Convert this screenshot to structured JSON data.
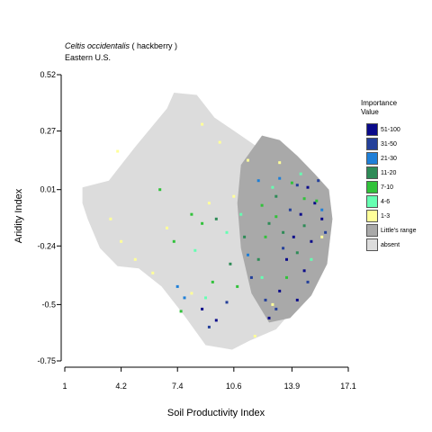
{
  "title": {
    "species": "Celtis occidentalis",
    "common": "( hackberry )",
    "region": "Eastern U.S."
  },
  "legend": {
    "title_line1": "Importance",
    "title_line2": "Value",
    "entries": [
      {
        "label": "51-100",
        "color": "#0a0a8a"
      },
      {
        "label": "31-50",
        "color": "#24409a"
      },
      {
        "label": "21-30",
        "color": "#1f7fd8"
      },
      {
        "label": "11-20",
        "color": "#2e8b57"
      },
      {
        "label": "7-10",
        "color": "#31c23a"
      },
      {
        "label": "4-6",
        "color": "#66ffb2"
      },
      {
        "label": "1-3",
        "color": "#ffff99"
      },
      {
        "label": "Little's range",
        "color": "#a9a9a9"
      },
      {
        "label": "absent",
        "color": "#dcdcdc"
      }
    ]
  },
  "chart_data": {
    "type": "heatmap",
    "title": "Celtis occidentalis ( hackberry )",
    "subtitle": "Eastern U.S.",
    "xlabel": "Soil Productivity Index",
    "ylabel": "Aridity Index",
    "xlim": [
      1,
      17.1
    ],
    "ylim": [
      -0.75,
      0.52
    ],
    "xticks": [
      "1",
      "4.2",
      "7.4",
      "10.6",
      "13.9",
      "17.1"
    ],
    "yticks": [
      "0.52",
      "0.27",
      "0.01",
      "-0.24",
      "-0.5",
      "-0.75"
    ],
    "xtick_values": [
      1,
      4.2,
      7.4,
      10.6,
      13.9,
      17.1
    ],
    "ytick_values": [
      0.52,
      0.27,
      0.01,
      -0.24,
      -0.5,
      -0.75
    ],
    "absent_region_outline": [
      [
        2.0,
        0.02
      ],
      [
        3.5,
        0.05
      ],
      [
        5.0,
        0.2
      ],
      [
        6.8,
        0.37
      ],
      [
        7.2,
        0.44
      ],
      [
        8.5,
        0.43
      ],
      [
        9.5,
        0.33
      ],
      [
        11.0,
        0.25
      ],
      [
        12.3,
        0.18
      ],
      [
        14.0,
        0.1
      ],
      [
        14.8,
        0.02
      ],
      [
        15.2,
        -0.15
      ],
      [
        15.0,
        -0.4
      ],
      [
        14.0,
        -0.52
      ],
      [
        13.0,
        -0.61
      ],
      [
        11.5,
        -0.66
      ],
      [
        10.5,
        -0.7
      ],
      [
        9.0,
        -0.68
      ],
      [
        7.8,
        -0.55
      ],
      [
        6.5,
        -0.42
      ],
      [
        5.2,
        -0.34
      ],
      [
        4.0,
        -0.33
      ],
      [
        3.0,
        -0.25
      ],
      [
        2.3,
        -0.12
      ],
      [
        2.0,
        -0.05
      ]
    ],
    "range_region_outline": [
      [
        11.0,
        0.12
      ],
      [
        12.2,
        0.25
      ],
      [
        13.2,
        0.23
      ],
      [
        14.2,
        0.16
      ],
      [
        15.2,
        0.08
      ],
      [
        16.0,
        0.01
      ],
      [
        16.2,
        -0.12
      ],
      [
        15.9,
        -0.32
      ],
      [
        15.0,
        -0.46
      ],
      [
        13.8,
        -0.56
      ],
      [
        12.6,
        -0.58
      ],
      [
        11.6,
        -0.45
      ],
      [
        11.0,
        -0.25
      ],
      [
        10.8,
        -0.05
      ]
    ],
    "points": [
      {
        "x": 14.8,
        "y": 0.02,
        "class": "51-100"
      },
      {
        "x": 15.2,
        "y": -0.05,
        "class": "51-100"
      },
      {
        "x": 14.4,
        "y": -0.1,
        "class": "51-100"
      },
      {
        "x": 15.6,
        "y": -0.12,
        "class": "51-100"
      },
      {
        "x": 14.0,
        "y": -0.2,
        "class": "51-100"
      },
      {
        "x": 15.0,
        "y": -0.22,
        "class": "51-100"
      },
      {
        "x": 13.6,
        "y": -0.3,
        "class": "51-100"
      },
      {
        "x": 14.6,
        "y": -0.35,
        "class": "51-100"
      },
      {
        "x": 13.2,
        "y": -0.44,
        "class": "51-100"
      },
      {
        "x": 14.2,
        "y": -0.48,
        "class": "51-100"
      },
      {
        "x": 8.8,
        "y": -0.52,
        "class": "51-100"
      },
      {
        "x": 9.6,
        "y": -0.57,
        "class": "51-100"
      },
      {
        "x": 12.6,
        "y": -0.56,
        "class": "51-100"
      },
      {
        "x": 15.4,
        "y": 0.05,
        "class": "31-50"
      },
      {
        "x": 14.2,
        "y": 0.03,
        "class": "31-50"
      },
      {
        "x": 13.8,
        "y": -0.08,
        "class": "31-50"
      },
      {
        "x": 15.8,
        "y": -0.18,
        "class": "31-50"
      },
      {
        "x": 13.4,
        "y": -0.25,
        "class": "31-50"
      },
      {
        "x": 14.8,
        "y": -0.4,
        "class": "31-50"
      },
      {
        "x": 12.4,
        "y": -0.48,
        "class": "31-50"
      },
      {
        "x": 11.6,
        "y": -0.38,
        "class": "31-50"
      },
      {
        "x": 9.2,
        "y": -0.6,
        "class": "31-50"
      },
      {
        "x": 10.2,
        "y": -0.49,
        "class": "31-50"
      },
      {
        "x": 13.0,
        "y": -0.52,
        "class": "31-50"
      },
      {
        "x": 12.0,
        "y": 0.05,
        "class": "21-30"
      },
      {
        "x": 13.2,
        "y": 0.06,
        "class": "21-30"
      },
      {
        "x": 7.4,
        "y": -0.42,
        "class": "21-30"
      },
      {
        "x": 7.8,
        "y": -0.47,
        "class": "21-30"
      },
      {
        "x": 11.4,
        "y": -0.28,
        "class": "21-30"
      },
      {
        "x": 15.6,
        "y": -0.08,
        "class": "21-30"
      },
      {
        "x": 13.0,
        "y": -0.02,
        "class": "11-20"
      },
      {
        "x": 12.6,
        "y": -0.14,
        "class": "11-20"
      },
      {
        "x": 14.6,
        "y": -0.15,
        "class": "11-20"
      },
      {
        "x": 13.4,
        "y": -0.18,
        "class": "11-20"
      },
      {
        "x": 11.2,
        "y": -0.2,
        "class": "11-20"
      },
      {
        "x": 12.0,
        "y": -0.3,
        "class": "11-20"
      },
      {
        "x": 10.4,
        "y": -0.32,
        "class": "11-20"
      },
      {
        "x": 9.6,
        "y": -0.12,
        "class": "11-20"
      },
      {
        "x": 14.2,
        "y": -0.27,
        "class": "11-20"
      },
      {
        "x": 13.9,
        "y": 0.04,
        "class": "7-10"
      },
      {
        "x": 14.6,
        "y": -0.03,
        "class": "7-10"
      },
      {
        "x": 12.2,
        "y": -0.06,
        "class": "7-10"
      },
      {
        "x": 13.0,
        "y": -0.11,
        "class": "7-10"
      },
      {
        "x": 15.3,
        "y": -0.04,
        "class": "7-10"
      },
      {
        "x": 12.4,
        "y": -0.2,
        "class": "7-10"
      },
      {
        "x": 8.2,
        "y": -0.1,
        "class": "7-10"
      },
      {
        "x": 8.8,
        "y": -0.14,
        "class": "7-10"
      },
      {
        "x": 7.2,
        "y": -0.22,
        "class": "7-10"
      },
      {
        "x": 9.4,
        "y": -0.4,
        "class": "7-10"
      },
      {
        "x": 7.6,
        "y": -0.53,
        "class": "7-10"
      },
      {
        "x": 6.4,
        "y": 0.01,
        "class": "7-10"
      },
      {
        "x": 10.8,
        "y": -0.42,
        "class": "7-10"
      },
      {
        "x": 13.6,
        "y": -0.38,
        "class": "7-10"
      },
      {
        "x": 14.4,
        "y": 0.08,
        "class": "4-6"
      },
      {
        "x": 12.8,
        "y": 0.02,
        "class": "4-6"
      },
      {
        "x": 10.2,
        "y": -0.18,
        "class": "4-6"
      },
      {
        "x": 8.4,
        "y": -0.26,
        "class": "4-6"
      },
      {
        "x": 11.0,
        "y": -0.1,
        "class": "4-6"
      },
      {
        "x": 9.0,
        "y": -0.47,
        "class": "4-6"
      },
      {
        "x": 12.2,
        "y": -0.38,
        "class": "4-6"
      },
      {
        "x": 15.0,
        "y": -0.3,
        "class": "4-6"
      },
      {
        "x": 4.0,
        "y": 0.18,
        "class": "1-3"
      },
      {
        "x": 3.6,
        "y": -0.12,
        "class": "1-3"
      },
      {
        "x": 4.2,
        "y": -0.22,
        "class": "1-3"
      },
      {
        "x": 5.0,
        "y": -0.3,
        "class": "1-3"
      },
      {
        "x": 8.8,
        "y": 0.3,
        "class": "1-3"
      },
      {
        "x": 9.8,
        "y": 0.22,
        "class": "1-3"
      },
      {
        "x": 11.4,
        "y": 0.14,
        "class": "1-3"
      },
      {
        "x": 9.2,
        "y": -0.05,
        "class": "1-3"
      },
      {
        "x": 10.6,
        "y": -0.02,
        "class": "1-3"
      },
      {
        "x": 6.0,
        "y": -0.36,
        "class": "1-3"
      },
      {
        "x": 12.8,
        "y": -0.5,
        "class": "1-3"
      },
      {
        "x": 11.8,
        "y": -0.64,
        "class": "1-3"
      },
      {
        "x": 8.2,
        "y": -0.45,
        "class": "1-3"
      },
      {
        "x": 15.6,
        "y": -0.2,
        "class": "1-3"
      },
      {
        "x": 13.2,
        "y": 0.13,
        "class": "1-3"
      },
      {
        "x": 6.8,
        "y": -0.16,
        "class": "1-3"
      }
    ]
  }
}
